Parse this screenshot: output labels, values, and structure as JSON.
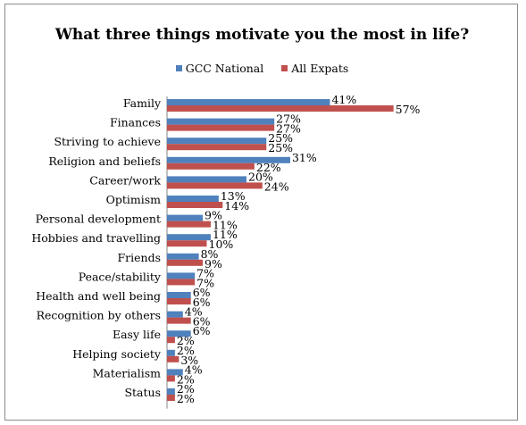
{
  "chart_data": {
    "type": "bar",
    "orientation": "horizontal",
    "title": "What three things motivate you the most in life?",
    "categories": [
      "Family",
      "Finances",
      "Striving to achieve",
      "Religion and beliefs",
      "Career/work",
      "Optimism",
      "Personal development",
      "Hobbies and travelling",
      "Friends",
      "Peace/stability",
      "Health and well being",
      "Recognition by others",
      "Easy life",
      "Helping society",
      "Materialism",
      "Status"
    ],
    "series": [
      {
        "name": "GCC National",
        "color": "#4f81bd",
        "values": [
          41,
          27,
          25,
          31,
          20,
          13,
          9,
          11,
          8,
          7,
          6,
          4,
          6,
          2,
          4,
          2
        ]
      },
      {
        "name": "All Expats",
        "color": "#c0504d",
        "values": [
          57,
          27,
          25,
          22,
          24,
          14,
          11,
          10,
          9,
          7,
          6,
          6,
          2,
          3,
          2,
          2
        ]
      }
    ],
    "value_suffix": "%",
    "legend_position": "top",
    "grid": false
  }
}
